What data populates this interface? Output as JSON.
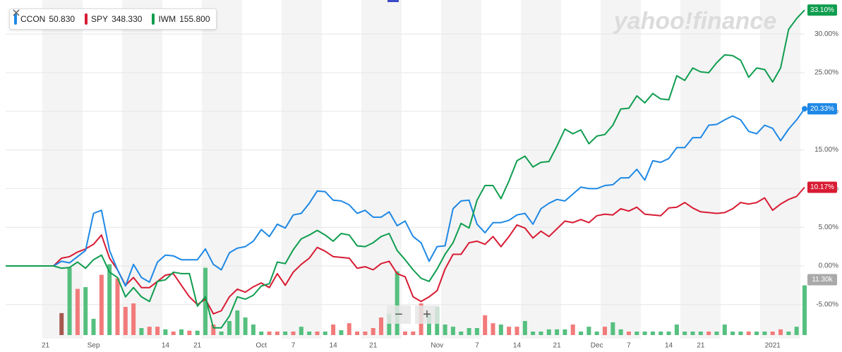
{
  "chart_data": {
    "type": "line",
    "watermark": "yahoo!finance",
    "categories": [
      null,
      null,
      null,
      null,
      null,
      "21",
      null,
      null,
      null,
      null,
      null,
      "Sep",
      null,
      null,
      null,
      null,
      null,
      null,
      null,
      null,
      "14",
      null,
      null,
      null,
      "21",
      null,
      null,
      null,
      null,
      null,
      null,
      null,
      "Oct",
      null,
      null,
      null,
      "7",
      null,
      null,
      null,
      null,
      "14",
      null,
      null,
      null,
      null,
      "21",
      null,
      null,
      null,
      null,
      null,
      null,
      null,
      "Nov",
      null,
      null,
      null,
      null,
      "7",
      null,
      null,
      null,
      null,
      "14",
      null,
      null,
      null,
      null,
      "21",
      null,
      null,
      null,
      null,
      "Dec",
      null,
      null,
      null,
      "7",
      null,
      null,
      null,
      null,
      "14",
      null,
      null,
      null,
      "21",
      null,
      null,
      null,
      null,
      null,
      null,
      null,
      null,
      "2021",
      null,
      null,
      null,
      null
    ],
    "series": [
      {
        "name": "CCON",
        "quote": "50.830",
        "color": "#1e88e5",
        "last_value_label": "20.33%",
        "values": [
          0,
          0,
          0,
          0,
          0,
          0,
          0,
          0.6,
          0.4,
          1.2,
          2.0,
          6.8,
          7.2,
          2.0,
          -0.5,
          -2.6,
          0.2,
          -1.5,
          -2.1,
          0.5,
          1.4,
          1.3,
          0.8,
          0.8,
          0.8,
          2.2,
          0.2,
          -0.5,
          1.7,
          2.3,
          2.5,
          3.2,
          4.7,
          3.8,
          5.4,
          4.9,
          6.6,
          6.8,
          8.1,
          9.7,
          9.6,
          8.5,
          8.4,
          7.9,
          6.8,
          7.2,
          6.3,
          6.3,
          7.0,
          5.2,
          5.8,
          3.8,
          3.0,
          0.6,
          2.5,
          2.6,
          7.4,
          8.4,
          8.5,
          5.4,
          4.3,
          5.6,
          5.6,
          5.9,
          6.6,
          6.8,
          5.4,
          7.4,
          8.1,
          8.6,
          8.4,
          9.3,
          10.2,
          10.0,
          10.0,
          10.4,
          10.5,
          11.4,
          11.4,
          12.5,
          11.1,
          13.6,
          13.4,
          13.9,
          15.3,
          15.3,
          16.6,
          16.6,
          18.2,
          18.3,
          18.9,
          19.4,
          18.9,
          17.4,
          17.1,
          18.2,
          17.8,
          16.2,
          17.7,
          18.9,
          20.33
        ]
      },
      {
        "name": "SPY",
        "quote": "348.330",
        "color": "#d81b33",
        "last_value_label": "10.17%",
        "values": [
          0,
          0,
          0,
          0,
          0,
          0,
          0,
          1.0,
          1.2,
          1.8,
          2.2,
          2.8,
          4.0,
          1.0,
          -0.5,
          -2.5,
          -1.5,
          -2.8,
          -2.8,
          -2.0,
          -1.2,
          -1.0,
          -2.5,
          -4.0,
          -5.0,
          -4.3,
          -6.2,
          -5.8,
          -4.0,
          -3.0,
          -3.4,
          -2.7,
          -2.2,
          -2.8,
          -1.0,
          -2.5,
          -0.8,
          0.2,
          1.0,
          2.4,
          1.9,
          1.2,
          1.1,
          1.0,
          -0.3,
          -0.1,
          -0.5,
          0.3,
          0.6,
          -1.0,
          -1.4,
          -4.0,
          -4.6,
          -4.0,
          -3.2,
          -0.4,
          1.5,
          1.5,
          3.0,
          3.2,
          2.8,
          3.8,
          2.5,
          3.8,
          5.3,
          4.9,
          3.6,
          4.5,
          3.8,
          4.8,
          5.8,
          5.6,
          6.0,
          5.6,
          6.5,
          6.7,
          6.6,
          7.4,
          7.1,
          7.6,
          6.7,
          6.6,
          6.5,
          7.5,
          7.6,
          8.2,
          7.5,
          7.0,
          6.9,
          6.8,
          6.9,
          7.4,
          8.2,
          8.0,
          8.2,
          8.8,
          7.2,
          8.0,
          8.6,
          9.0,
          10.17
        ]
      },
      {
        "name": "IWM",
        "quote": "155.800",
        "color": "#0f9d4f",
        "last_value_label": "33.10%",
        "values": [
          0,
          0,
          0,
          0,
          0,
          0,
          0,
          -0.3,
          -0.2,
          0.5,
          -0.3,
          0.8,
          1.4,
          -0.8,
          -1.5,
          -4.0,
          -2.8,
          -4.0,
          -4.6,
          -2.0,
          -1.8,
          -0.8,
          -1.0,
          -1.0,
          -5.2,
          -4.0,
          -8.0,
          -8.0,
          -6.5,
          -4.0,
          -4.3,
          -3.8,
          -2.6,
          -2.3,
          0.5,
          0.3,
          2.1,
          3.5,
          4.0,
          4.6,
          4.0,
          3.2,
          4.2,
          4.0,
          2.6,
          2.5,
          3.0,
          3.8,
          4.2,
          2.0,
          0.8,
          -0.5,
          -1.6,
          -2.0,
          -0.4,
          1.5,
          3.0,
          5.5,
          4.9,
          8.5,
          10.4,
          10.4,
          8.7,
          11.0,
          13.6,
          14.2,
          12.8,
          13.4,
          13.5,
          15.5,
          17.7,
          17.1,
          17.6,
          15.8,
          16.8,
          17.0,
          18.2,
          20.3,
          20.4,
          22.0,
          21.1,
          22.3,
          21.6,
          21.5,
          24.6,
          24.0,
          25.6,
          25.1,
          25.0,
          26.3,
          27.3,
          27.2,
          26.6,
          24.4,
          25.6,
          25.4,
          23.8,
          25.6,
          30.6,
          32.0,
          33.1
        ]
      }
    ],
    "ylim": [
      -9.4,
      34.4
    ],
    "yticks": [
      {
        "value": -5,
        "label": "-5.00%"
      },
      {
        "value": 0,
        "label": "0.00%"
      },
      {
        "value": 5,
        "label": "5.00%"
      },
      {
        "value": 10,
        "label": "10.00%"
      },
      {
        "value": 15,
        "label": "15.00%"
      },
      {
        "value": 20,
        "label": "20.00%"
      },
      {
        "value": 25,
        "label": "25.00%"
      },
      {
        "value": 30,
        "label": "30.00%"
      }
    ],
    "volume": {
      "ylim": [
        0,
        17000
      ],
      "last_value_label": "11.30k",
      "values": [
        null,
        null,
        null,
        null,
        null,
        null,
        null,
        5000,
        15300,
        10500,
        10900,
        3700,
        13700,
        16100,
        12900,
        6400,
        7200,
        1600,
        1900,
        1900,
        1300,
        800,
        1300,
        1000,
        1000,
        15300,
        2400,
        800,
        3200,
        5600,
        4000,
        2400,
        800,
        800,
        800,
        800,
        800,
        1900,
        800,
        800,
        800,
        2400,
        1100,
        2700,
        800,
        800,
        1600,
        4000,
        4800,
        14500,
        800,
        800,
        7200,
        4800,
        6400,
        2400,
        1900,
        800,
        1600,
        1600,
        4500,
        2700,
        2400,
        1900,
        1900,
        3200,
        800,
        800,
        1300,
        1300,
        1300,
        2400,
        800,
        1900,
        800,
        1900,
        2900,
        1300,
        800,
        800,
        800,
        800,
        800,
        800,
        2400,
        800,
        800,
        800,
        800,
        800,
        2400,
        800,
        800,
        800,
        800,
        800,
        800,
        1300,
        800,
        1900,
        11300
      ],
      "colors": [
        null,
        null,
        null,
        null,
        null,
        null,
        null,
        "#a6584f",
        "#55c07f",
        "#f27a7a",
        "#55c07f",
        "#55c07f",
        "#f27a7a",
        "#55c07f",
        "#f27a7a",
        "#f27a7a",
        "#f27a7a",
        "#55c07f",
        "#f27a7a",
        "#f27a7a",
        "#55c07f",
        "#f27a7a",
        "#55c07f",
        "#f27a7a",
        "#55c07f",
        "#55c07f",
        "#f27a7a",
        "#55c07f",
        "#55c07f",
        "#55c07f",
        "#55c07f",
        "#55c07f",
        "#55c07f",
        "#f27a7a",
        "#f27a7a",
        "#55c07f",
        "#f27a7a",
        "#55c07f",
        "#55c07f",
        "#f27a7a",
        "#55c07f",
        "#f27a7a",
        "#55c07f",
        "#f27a7a",
        "#f27a7a",
        "#f27a7a",
        "#f27a7a",
        "#f27a7a",
        "#55c07f",
        "#55c07f",
        "#f27a7a",
        "#f27a7a",
        "#f27a7a",
        "#55c07f",
        "#55c07f",
        "#55c07f",
        "#55c07f",
        "#55c07f",
        "#55c07f",
        "#55c07f",
        "#f27a7a",
        "#f27a7a",
        "#55c07f",
        "#f27a7a",
        "#f27a7a",
        "#55c07f",
        "#55c07f",
        "#55c07f",
        "#55c07f",
        "#55c07f",
        "#55c07f",
        "#f27a7a",
        "#55c07f",
        "#55c07f",
        "#55c07f",
        "#f27a7a",
        "#55c07f",
        "#55c07f",
        "#f27a7a",
        "#55c07f",
        "#55c07f",
        "#55c07f",
        "#55c07f",
        "#55c07f",
        "#55c07f",
        "#55c07f",
        "#55c07f",
        "#55c07f",
        "#f27a7a",
        "#55c07f",
        "#55c07f",
        "#55c07f",
        "#55c07f",
        "#f27a7a",
        "#55c07f",
        "#55c07f",
        "#f27a7a",
        "#f27a7a",
        "#55c07f",
        "#55c07f",
        "#55c07f"
      ]
    },
    "zoom_controls": [
      "−",
      "+"
    ]
  }
}
